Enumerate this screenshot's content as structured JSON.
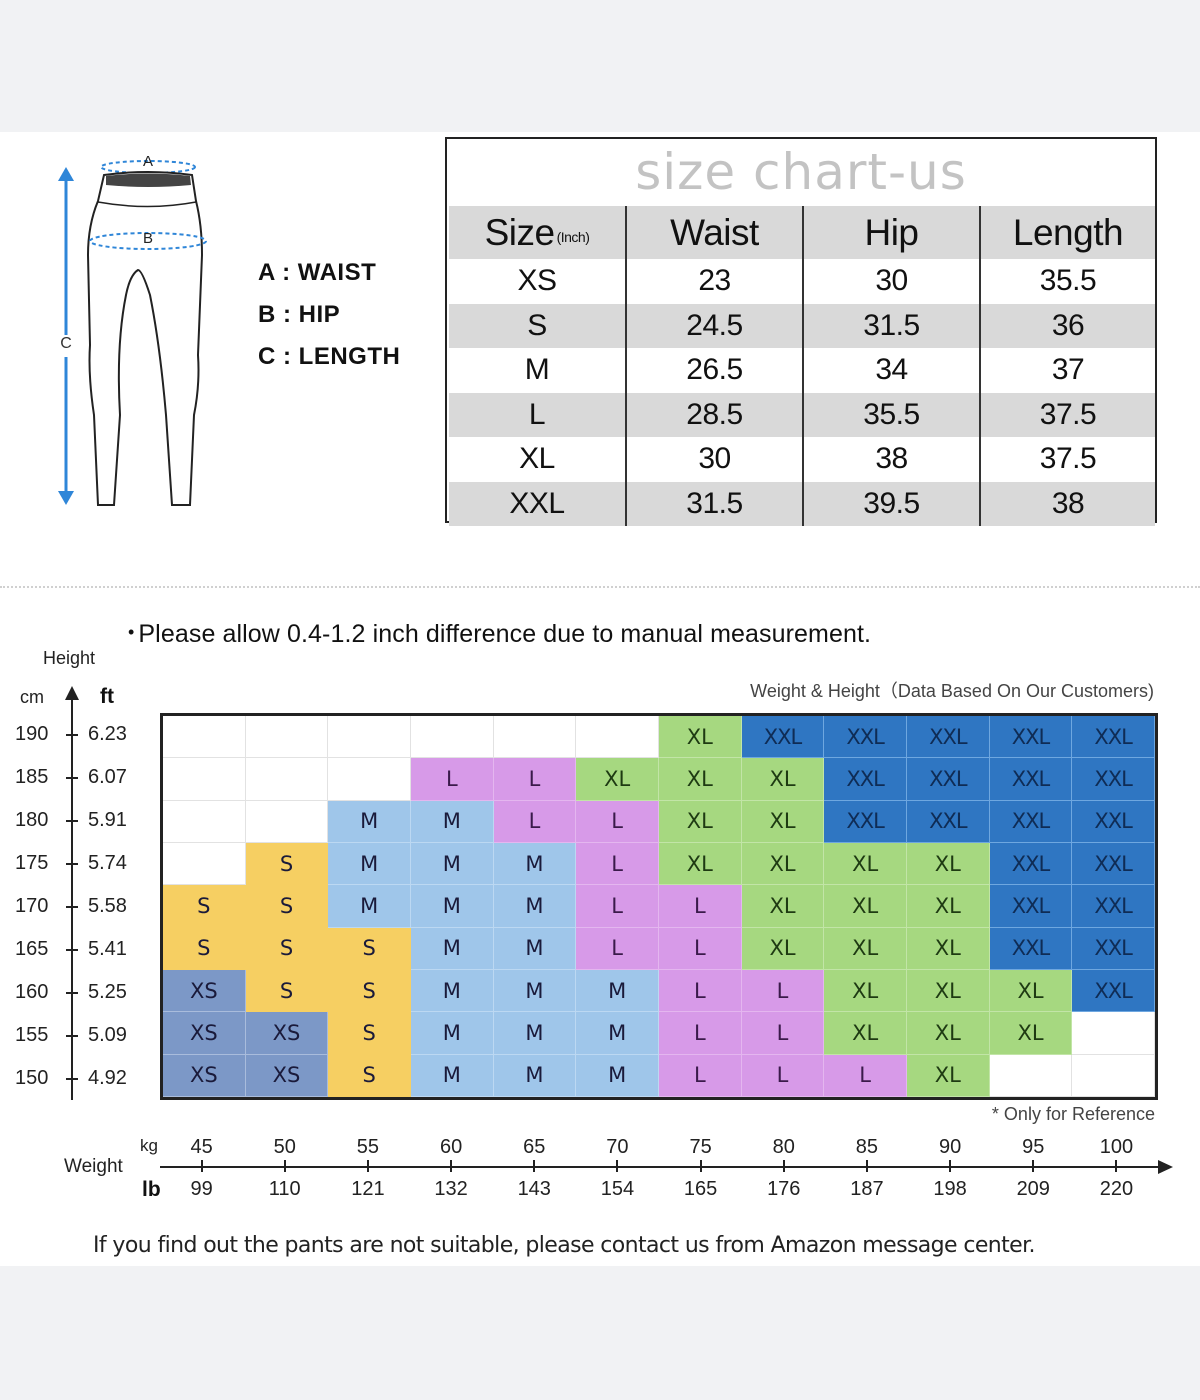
{
  "diagram": {
    "marker_a": "A",
    "marker_b": "B",
    "marker_c": "C",
    "accent_color": "#2f86d8",
    "legend": [
      {
        "key": "A",
        "label": "A : WAIST"
      },
      {
        "key": "B",
        "label": "B : HIP"
      },
      {
        "key": "C",
        "label": "C : LENGTH"
      }
    ]
  },
  "size_chart": {
    "title": "size chart-us",
    "headers": {
      "size": "Size",
      "unit": "(Inch)",
      "waist": "Waist",
      "hip": "Hip",
      "length": "Length"
    },
    "rows": [
      {
        "size": "XS",
        "waist": "23",
        "hip": "30",
        "length": "35.5"
      },
      {
        "size": "S",
        "waist": "24.5",
        "hip": "31.5",
        "length": "36"
      },
      {
        "size": "M",
        "waist": "26.5",
        "hip": "34",
        "length": "37"
      },
      {
        "size": "L",
        "waist": "28.5",
        "hip": "35.5",
        "length": "37.5"
      },
      {
        "size": "XL",
        "waist": "30",
        "hip": "38",
        "length": "37.5"
      },
      {
        "size": "XXL",
        "waist": "31.5",
        "hip": "39.5",
        "length": "38"
      }
    ]
  },
  "note": {
    "bullet": "•",
    "text": "Please allow 0.4-1.2 inch difference due to manual measurement."
  },
  "chart": {
    "subtitle": "Weight & Height（Data Based On Our Customers)",
    "height_label": "Height",
    "unit_cm": "cm",
    "unit_ft": "ft",
    "weight_label": "Weight",
    "unit_kg": "kg",
    "unit_lb": "lb",
    "reference_note": "* Only for Reference"
  },
  "footer": {
    "text": "If you find out the pants are not suitable, please contact us from Amazon message center."
  },
  "chart_data": [
    {
      "type": "table",
      "title": "size chart-us",
      "columns": [
        "Size (Inch)",
        "Waist",
        "Hip",
        "Length"
      ],
      "rows": [
        [
          "XS",
          23,
          30,
          35.5
        ],
        [
          "S",
          24.5,
          31.5,
          36
        ],
        [
          "M",
          26.5,
          34,
          37
        ],
        [
          "L",
          28.5,
          35.5,
          37.5
        ],
        [
          "XL",
          30,
          38,
          37.5
        ],
        [
          "XXL",
          31.5,
          39.5,
          38
        ]
      ]
    },
    {
      "type": "heatmap",
      "title": "Weight & Height (Data Based On Our Customers)",
      "xlabel": "Weight",
      "ylabel": "Height",
      "x_kg": [
        45,
        50,
        55,
        60,
        65,
        70,
        75,
        80,
        85,
        90,
        95,
        100
      ],
      "x_lb": [
        99,
        110,
        121,
        132,
        143,
        154,
        165,
        176,
        187,
        198,
        209,
        220
      ],
      "y_cm": [
        190,
        185,
        180,
        175,
        170,
        165,
        160,
        155,
        150
      ],
      "y_ft": [
        "6.23",
        "6.07",
        "5.91",
        "5.74",
        "5.58",
        "5.41",
        "5.25",
        "5.09",
        "4.92"
      ],
      "legend": {
        "XS": "#7c98c7",
        "S": "#f6cf62",
        "M": "#9fc6ea",
        "L": "#d79ae8",
        "XL": "#a6d880",
        "XXL": "#2f76c2"
      },
      "cells": [
        [
          "",
          "",
          "",
          "",
          "",
          "",
          "XL",
          "XXL",
          "XXL",
          "XXL",
          "XXL",
          "XXL"
        ],
        [
          "",
          "",
          "",
          "L",
          "L",
          "XL",
          "XL",
          "XL",
          "XXL",
          "XXL",
          "XXL",
          "XXL"
        ],
        [
          "",
          "",
          "M",
          "M",
          "L",
          "L",
          "XL",
          "XL",
          "XXL",
          "XXL",
          "XXL",
          "XXL"
        ],
        [
          "",
          "S",
          "M",
          "M",
          "M",
          "L",
          "XL",
          "XL",
          "XL",
          "XL",
          "XXL",
          "XXL"
        ],
        [
          "S",
          "S",
          "M",
          "M",
          "M",
          "L",
          "L",
          "XL",
          "XL",
          "XL",
          "XXL",
          "XXL"
        ],
        [
          "S",
          "S",
          "S",
          "M",
          "M",
          "L",
          "L",
          "XL",
          "XL",
          "XL",
          "XXL",
          "XXL"
        ],
        [
          "XS",
          "S",
          "S",
          "M",
          "M",
          "M",
          "L",
          "L",
          "XL",
          "XL",
          "XL",
          "XXL"
        ],
        [
          "XS",
          "XS",
          "S",
          "M",
          "M",
          "M",
          "L",
          "L",
          "XL",
          "XL",
          "XL",
          ""
        ],
        [
          "XS",
          "XS",
          "S",
          "M",
          "M",
          "M",
          "L",
          "L",
          "L",
          "XL",
          "",
          ""
        ]
      ],
      "annotations": [
        "* Only for Reference"
      ]
    }
  ]
}
